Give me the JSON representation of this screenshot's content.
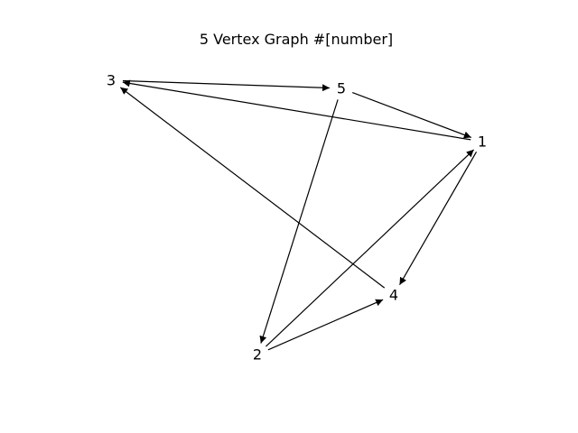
{
  "title": "5 Vertex Graph #[number]",
  "colors": {
    "edge": "#000000",
    "label": "#000000",
    "background": "#ffffff"
  },
  "graph": {
    "directed": true,
    "nodes": [
      {
        "id": "1",
        "label": "1"
      },
      {
        "id": "2",
        "label": "2"
      },
      {
        "id": "3",
        "label": "3"
      },
      {
        "id": "4",
        "label": "4"
      },
      {
        "id": "5",
        "label": "5"
      }
    ],
    "edges": [
      {
        "from": "3",
        "to": "5"
      },
      {
        "from": "5",
        "to": "1"
      },
      {
        "from": "1",
        "to": "3"
      },
      {
        "from": "5",
        "to": "2"
      },
      {
        "from": "1",
        "to": "4"
      },
      {
        "from": "2",
        "to": "1"
      },
      {
        "from": "2",
        "to": "4"
      },
      {
        "from": "4",
        "to": "3"
      }
    ]
  }
}
